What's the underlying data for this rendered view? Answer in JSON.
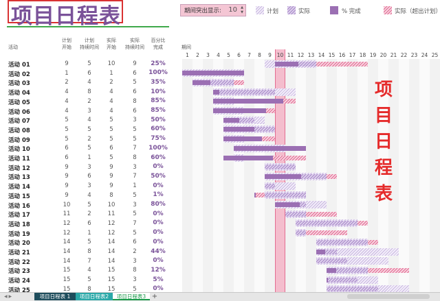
{
  "title": "项目日程表",
  "highlight": {
    "label": "期间突出显示:",
    "value": "10"
  },
  "legend": [
    {
      "key": "plan",
      "label": "计划",
      "icon": "plan-hatch-swatch"
    },
    {
      "key": "actual",
      "label": "实际",
      "icon": "actual-hatch-swatch"
    },
    {
      "key": "complete",
      "label": "% 完成",
      "icon": "complete-solid-swatch"
    },
    {
      "key": "beyond",
      "label": "实际（超出计划）",
      "icon": "beyond-hatch-swatch"
    }
  ],
  "headers": {
    "activity": "活动",
    "plan_start": [
      "计划",
      "开始"
    ],
    "plan_duration": [
      "计划",
      "持续时间"
    ],
    "actual_start": [
      "实际",
      "开始"
    ],
    "actual_duration": [
      "实际",
      "持续时间"
    ],
    "percent": [
      "百分比",
      "完成"
    ],
    "period": "期间"
  },
  "periods": [
    "1",
    "2",
    "3",
    "4",
    "5",
    "6",
    "7",
    "8",
    "9",
    "10",
    "11",
    "12",
    "13",
    "14",
    "15",
    "16",
    "17",
    "18",
    "19",
    "20",
    "21",
    "22",
    "23",
    "24",
    "25"
  ],
  "activities": [
    {
      "name": "活动 01",
      "ps": 9,
      "pd": 5,
      "as": 10,
      "ad": 9,
      "pct": "25%"
    },
    {
      "name": "活动 02",
      "ps": 1,
      "pd": 6,
      "as": 1,
      "ad": 6,
      "pct": "100%"
    },
    {
      "name": "活动 03",
      "ps": 2,
      "pd": 4,
      "as": 2,
      "ad": 5,
      "pct": "35%"
    },
    {
      "name": "活动 04",
      "ps": 4,
      "pd": 8,
      "as": 4,
      "ad": 6,
      "pct": "10%"
    },
    {
      "name": "活动 05",
      "ps": 4,
      "pd": 2,
      "as": 4,
      "ad": 8,
      "pct": "85%"
    },
    {
      "name": "活动 06",
      "ps": 4,
      "pd": 3,
      "as": 4,
      "ad": 6,
      "pct": "85%"
    },
    {
      "name": "活动 07",
      "ps": 5,
      "pd": 4,
      "as": 5,
      "ad": 3,
      "pct": "50%"
    },
    {
      "name": "活动 08",
      "ps": 5,
      "pd": 5,
      "as": 5,
      "ad": 5,
      "pct": "60%"
    },
    {
      "name": "活动 09",
      "ps": 5,
      "pd": 2,
      "as": 5,
      "ad": 5,
      "pct": "75%"
    },
    {
      "name": "活动 10",
      "ps": 6,
      "pd": 5,
      "as": 6,
      "ad": 7,
      "pct": "100%"
    },
    {
      "name": "活动 11",
      "ps": 6,
      "pd": 1,
      "as": 5,
      "ad": 8,
      "pct": "60%"
    },
    {
      "name": "活动 12",
      "ps": 9,
      "pd": 3,
      "as": 9,
      "ad": 3,
      "pct": "0%"
    },
    {
      "name": "活动 13",
      "ps": 9,
      "pd": 6,
      "as": 9,
      "ad": 7,
      "pct": "50%"
    },
    {
      "name": "活动 14",
      "ps": 9,
      "pd": 3,
      "as": 9,
      "ad": 1,
      "pct": "0%"
    },
    {
      "name": "活动 15",
      "ps": 9,
      "pd": 4,
      "as": 8,
      "ad": 5,
      "pct": "1%"
    },
    {
      "name": "活动 16",
      "ps": 10,
      "pd": 5,
      "as": 10,
      "ad": 3,
      "pct": "80%"
    },
    {
      "name": "活动 17",
      "ps": 11,
      "pd": 2,
      "as": 11,
      "ad": 5,
      "pct": "0%"
    },
    {
      "name": "活动 18",
      "ps": 12,
      "pd": 6,
      "as": 12,
      "ad": 7,
      "pct": "0%"
    },
    {
      "name": "活动 19",
      "ps": 12,
      "pd": 1,
      "as": 12,
      "ad": 5,
      "pct": "0%"
    },
    {
      "name": "活动 20",
      "ps": 14,
      "pd": 5,
      "as": 14,
      "ad": 6,
      "pct": "0%"
    },
    {
      "name": "活动 21",
      "ps": 14,
      "pd": 8,
      "as": 14,
      "ad": 2,
      "pct": "44%"
    },
    {
      "name": "活动 22",
      "ps": 14,
      "pd": 7,
      "as": 14,
      "ad": 3,
      "pct": "0%"
    },
    {
      "name": "活动 23",
      "ps": 15,
      "pd": 4,
      "as": 15,
      "ad": 8,
      "pct": "12%"
    },
    {
      "name": "活动 24",
      "ps": 15,
      "pd": 5,
      "as": 15,
      "ad": 3,
      "pct": "5%"
    },
    {
      "name": "活动 25",
      "ps": 15,
      "pd": 8,
      "as": 15,
      "ad": 5,
      "pct": "0%"
    }
  ],
  "side_title": [
    "项",
    "目",
    "日",
    "程",
    "表"
  ],
  "sheet_tabs": [
    {
      "label": "项目日程表 1",
      "active": false
    },
    {
      "label": "项目日程表2",
      "active": false
    },
    {
      "label": "项目日程表3",
      "active": true
    }
  ],
  "add_sheet": "+",
  "colors": {
    "plan": "#c8b6df",
    "actual": "#a888c8",
    "complete": "#9b6fb3",
    "beyond": "#e06a92",
    "highlight_column": "#f4b3c6",
    "title": "#7a5299",
    "side_title": "#e52b2b"
  }
}
